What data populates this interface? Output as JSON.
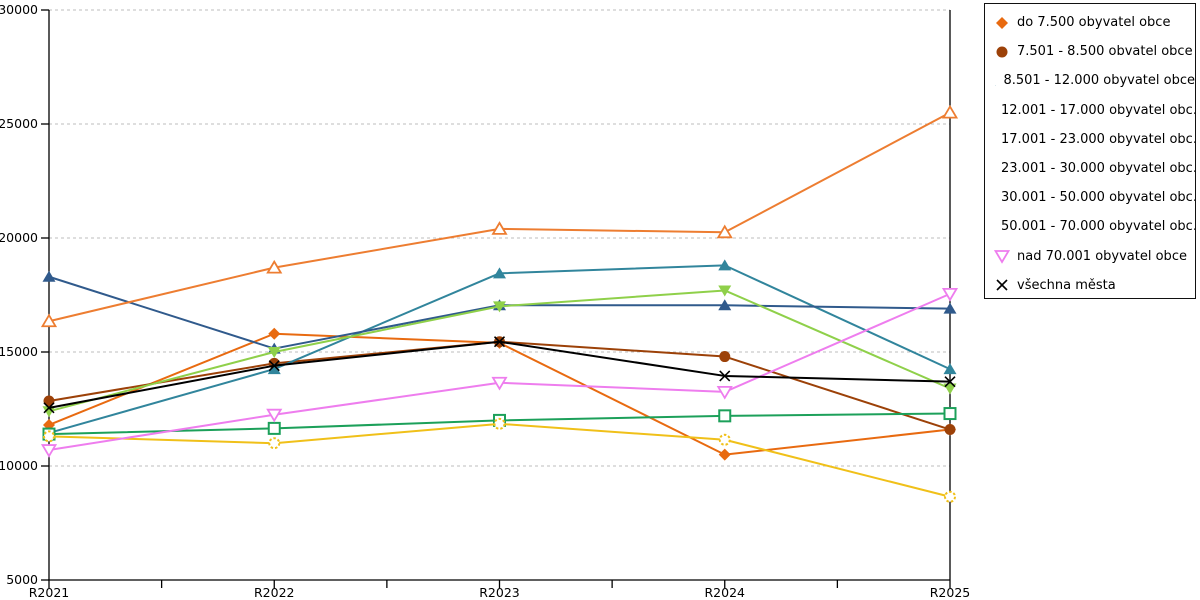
{
  "chart_data": {
    "type": "line",
    "title": "",
    "xlabel": "",
    "ylabel": "",
    "categories": [
      "R2021",
      "R2022",
      "R2023",
      "R2024",
      "R2025"
    ],
    "ylim": [
      5000,
      30000
    ],
    "ytick_labels": [
      "30000",
      "25000",
      "20000",
      "15000",
      "10000",
      "5000"
    ],
    "yticks": [
      30000,
      25000,
      20000,
      15000,
      10000,
      5000
    ],
    "grid": "horizontal-dashed",
    "gridline_color": "#bdbdbd",
    "axis_color": "#000000",
    "legend_position": "right",
    "series": [
      {
        "legend_label": "do 7.500 obyvatel obce",
        "color": "#e86a10",
        "marker": "diamond-filled",
        "values": [
          11800,
          15800,
          15400,
          10500,
          11600
        ]
      },
      {
        "legend_label": "7.501 - 8.500 obvatel obce",
        "color": "#9c4108",
        "marker": "circle-filled",
        "values": [
          12850,
          14500,
          15450,
          14800,
          11600
        ]
      },
      {
        "legend_label": "8.501 - 12.000 obyvatel obce",
        "color": "#31859c",
        "marker": "triangle-up-filled",
        "values": [
          11450,
          14250,
          18450,
          18800,
          14250
        ]
      },
      {
        "legend_label": "12.001 - 17.000 obyvatel obc...",
        "color": "#305a8c",
        "marker": "triangle-up-filled",
        "values": [
          18300,
          15150,
          17050,
          17050,
          16900
        ]
      },
      {
        "legend_label": "17.001 - 23.000 obyvatel obc...",
        "color": "#8fd04a",
        "marker": "triangle-down-filled",
        "values": [
          12400,
          15000,
          17000,
          17700,
          13400
        ]
      },
      {
        "legend_label": "23.001 - 30.000 obyvatel obc...",
        "color": "#1ca05a",
        "marker": "square-open",
        "values": [
          11400,
          11650,
          12000,
          12200,
          12300
        ]
      },
      {
        "legend_label": "30.001 - 50.000 obyvatel obc...",
        "color": "#f0c019",
        "marker": "circle-open-dashed",
        "values": [
          11300,
          11000,
          11850,
          11150,
          8650
        ]
      },
      {
        "legend_label": "50.001 - 70.000 obyvatel obc...",
        "color": "#ed7d31",
        "marker": "triangle-up-open",
        "values": [
          16350,
          18700,
          20400,
          20250,
          25500
        ]
      },
      {
        "legend_label": "nad 70.001 obyvatel obce",
        "color": "#ee7dee",
        "marker": "triangle-down-open",
        "values": [
          10700,
          12250,
          13650,
          13250,
          17550
        ]
      },
      {
        "legend_label": "všechna města",
        "color": "#000000",
        "marker": "x",
        "values": [
          12550,
          14400,
          15450,
          13950,
          13700
        ]
      }
    ]
  }
}
